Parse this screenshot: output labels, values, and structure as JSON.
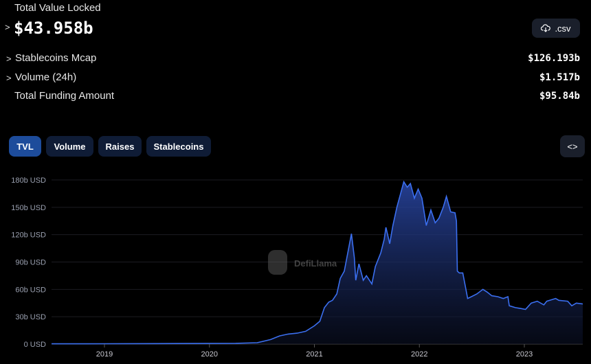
{
  "header": {
    "tvl_label": "Total Value Locked",
    "tvl_value": "$43.958b",
    "csv_label": ".csv",
    "csv_icon": "cloud-download-icon",
    "metrics": [
      {
        "label": "Stablecoins Mcap",
        "value": "$126.193b",
        "expandable": true
      },
      {
        "label": "Volume (24h)",
        "value": "$1.517b",
        "expandable": true
      },
      {
        "label": "Total Funding Amount",
        "value": "$95.84b",
        "expandable": false
      }
    ]
  },
  "tabs": [
    {
      "label": "TVL",
      "active": true
    },
    {
      "label": "Volume",
      "active": false
    },
    {
      "label": "Raises",
      "active": false
    },
    {
      "label": "Stablecoins",
      "active": false
    }
  ],
  "embed_icon": "code-icon",
  "watermark": "DefiLlama",
  "colors": {
    "line": "#3b6ff0",
    "active_tab": "#1d4c9b",
    "tab": "#0f1c36"
  },
  "chart_data": {
    "type": "area",
    "title": "",
    "xlabel": "",
    "ylabel": "",
    "x_ticks": [
      "2019",
      "2020",
      "2021",
      "2022",
      "2023"
    ],
    "y_ticks": [
      "0 USD",
      "30b USD",
      "60b USD",
      "90b USD",
      "120b USD",
      "150b USD",
      "180b USD"
    ],
    "ylim": [
      0,
      180
    ],
    "y_unit": "billion USD",
    "grid": true,
    "series": [
      {
        "x": [
          "2018-07-01",
          "2019-01-01",
          "2019-07-01",
          "2020-01-01",
          "2020-04-01",
          "2020-06-15",
          "2020-08-01",
          "2020-09-01",
          "2020-10-01",
          "2020-11-01",
          "2020-12-01",
          "2021-01-01",
          "2021-01-20",
          "2021-02-05",
          "2021-02-20",
          "2021-03-05",
          "2021-03-20",
          "2021-04-01",
          "2021-04-15",
          "2021-05-10",
          "2021-05-20",
          "2021-05-25",
          "2021-06-05",
          "2021-06-20",
          "2021-07-01",
          "2021-07-20",
          "2021-08-01",
          "2021-08-20",
          "2021-09-01",
          "2021-09-07",
          "2021-09-20",
          "2021-10-01",
          "2021-10-15",
          "2021-11-08",
          "2021-11-20",
          "2021-12-01",
          "2021-12-15",
          "2021-12-28",
          "2022-01-10",
          "2022-01-25",
          "2022-02-10",
          "2022-02-25",
          "2022-03-10",
          "2022-03-25",
          "2022-04-05",
          "2022-04-20",
          "2022-05-05",
          "2022-05-10",
          "2022-05-13",
          "2022-05-20",
          "2022-06-01",
          "2022-06-12",
          "2022-06-18",
          "2022-07-01",
          "2022-07-20",
          "2022-08-10",
          "2022-08-25",
          "2022-09-10",
          "2022-10-01",
          "2022-10-20",
          "2022-11-05",
          "2022-11-10",
          "2022-12-01",
          "2022-12-20",
          "2023-01-05",
          "2023-01-25",
          "2023-02-15",
          "2023-03-10",
          "2023-03-20",
          "2023-04-10",
          "2023-04-20",
          "2023-05-01",
          "2023-06-01",
          "2023-06-15",
          "2023-07-01",
          "2023-07-20"
        ],
        "y": [
          0.3,
          0.4,
          0.5,
          0.7,
          0.8,
          1.5,
          5,
          9,
          11,
          12,
          14,
          20,
          25,
          40,
          46,
          48,
          55,
          72,
          80,
          121,
          95,
          70,
          88,
          70,
          75,
          66,
          85,
          100,
          115,
          128,
          110,
          130,
          150,
          178,
          172,
          176,
          160,
          170,
          160,
          130,
          147,
          133,
          138,
          150,
          162,
          145,
          144,
          135,
          80,
          78,
          78,
          60,
          50,
          52,
          55,
          60,
          57,
          53,
          52,
          50,
          52,
          42,
          40,
          39,
          38,
          45,
          47,
          43,
          47,
          49,
          50,
          48,
          47,
          42,
          45,
          44
        ]
      }
    ]
  }
}
